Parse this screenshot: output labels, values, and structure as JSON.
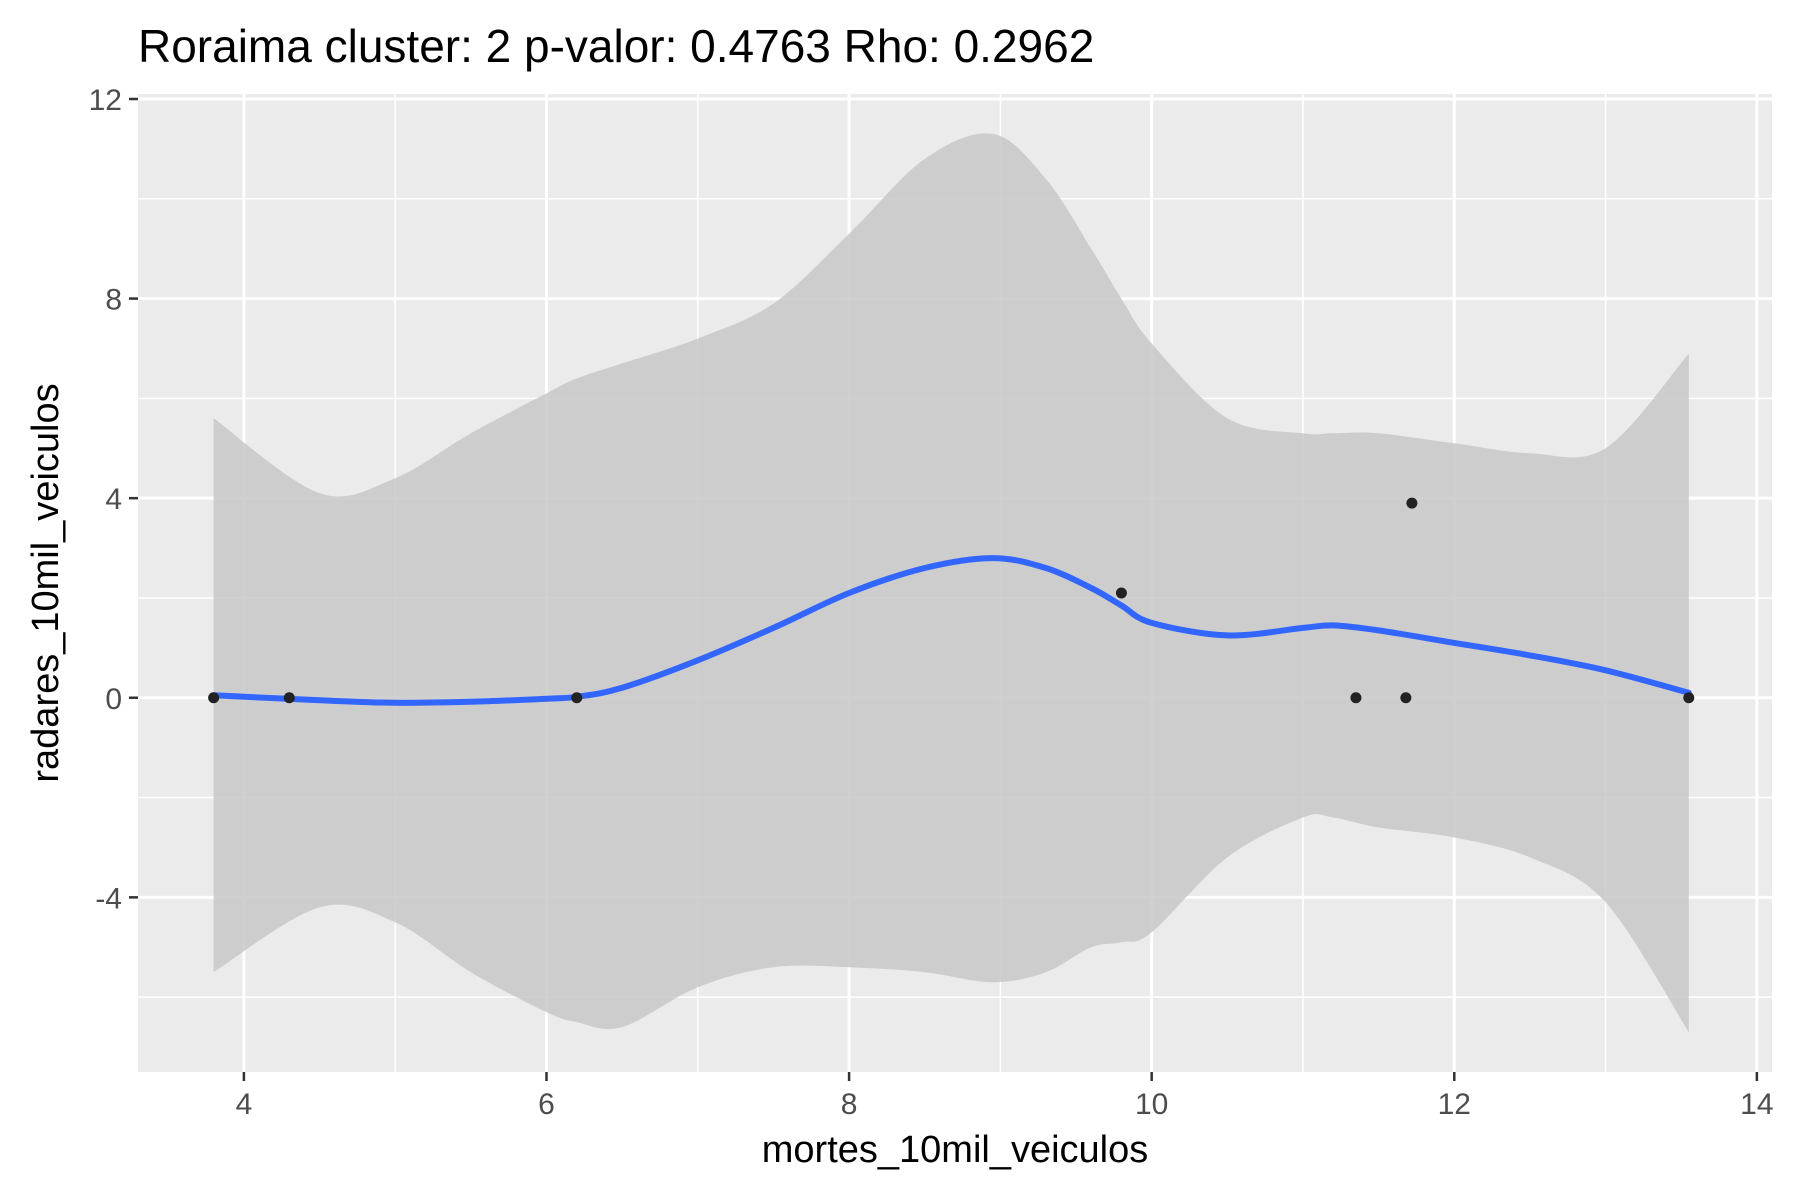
{
  "chart_data": {
    "type": "scatter",
    "title": "Roraima cluster: 2 p-valor: 0.4763 Rho: 0.2962",
    "xlabel": "mortes_10mil_veiculos",
    "ylabel": "radares_10mil_veiculos",
    "xlim": [
      3.3,
      14.1
    ],
    "ylim": [
      -7.5,
      12.1
    ],
    "x_ticks": [
      4,
      6,
      8,
      10,
      12,
      14
    ],
    "y_ticks": [
      -4,
      0,
      4,
      8,
      12
    ],
    "x_tick_labels": [
      "4",
      "6",
      "8",
      "10",
      "12",
      "14"
    ],
    "y_tick_labels": [
      "-4",
      "0",
      "4",
      "8",
      "12"
    ],
    "grid": true,
    "legend": "none",
    "colors": {
      "panel": "#ebebeb",
      "grid": "#ffffff",
      "points": "#222222",
      "smooth_line": "#3366ff",
      "confidence_band": "#c8c8c8"
    },
    "points": [
      {
        "x": 3.8,
        "y": 0
      },
      {
        "x": 4.3,
        "y": 0
      },
      {
        "x": 6.2,
        "y": 0
      },
      {
        "x": 9.8,
        "y": 2.1
      },
      {
        "x": 11.35,
        "y": 0
      },
      {
        "x": 11.68,
        "y": 0
      },
      {
        "x": 11.72,
        "y": 3.9
      },
      {
        "x": 13.55,
        "y": 0
      }
    ],
    "smooth_fit": {
      "x": [
        3.8,
        4.5,
        5.0,
        5.5,
        6.0,
        6.2,
        6.5,
        7.0,
        7.5,
        8.0,
        8.5,
        8.95,
        9.3,
        9.6,
        9.8,
        10.0,
        10.5,
        11.0,
        11.2,
        11.5,
        12.0,
        12.5,
        13.0,
        13.55
      ],
      "y": [
        0.05,
        -0.05,
        -0.1,
        -0.08,
        -0.02,
        0.02,
        0.2,
        0.75,
        1.4,
        2.1,
        2.6,
        2.8,
        2.6,
        2.2,
        1.85,
        1.5,
        1.25,
        1.4,
        1.45,
        1.35,
        1.1,
        0.85,
        0.55,
        0.1
      ],
      "upper": [
        5.6,
        4.1,
        4.4,
        5.3,
        6.1,
        6.4,
        6.7,
        7.2,
        7.9,
        9.3,
        10.8,
        11.3,
        10.4,
        9.0,
        8.0,
        7.1,
        5.6,
        5.3,
        5.3,
        5.3,
        5.1,
        4.9,
        5.0,
        6.9
      ],
      "lower": [
        -5.5,
        -4.2,
        -4.5,
        -5.5,
        -6.3,
        -6.5,
        -6.6,
        -5.8,
        -5.4,
        -5.4,
        -5.5,
        -5.7,
        -5.5,
        -5.0,
        -4.9,
        -4.7,
        -3.2,
        -2.4,
        -2.4,
        -2.6,
        -2.8,
        -3.2,
        -4.1,
        -6.7
      ]
    }
  }
}
